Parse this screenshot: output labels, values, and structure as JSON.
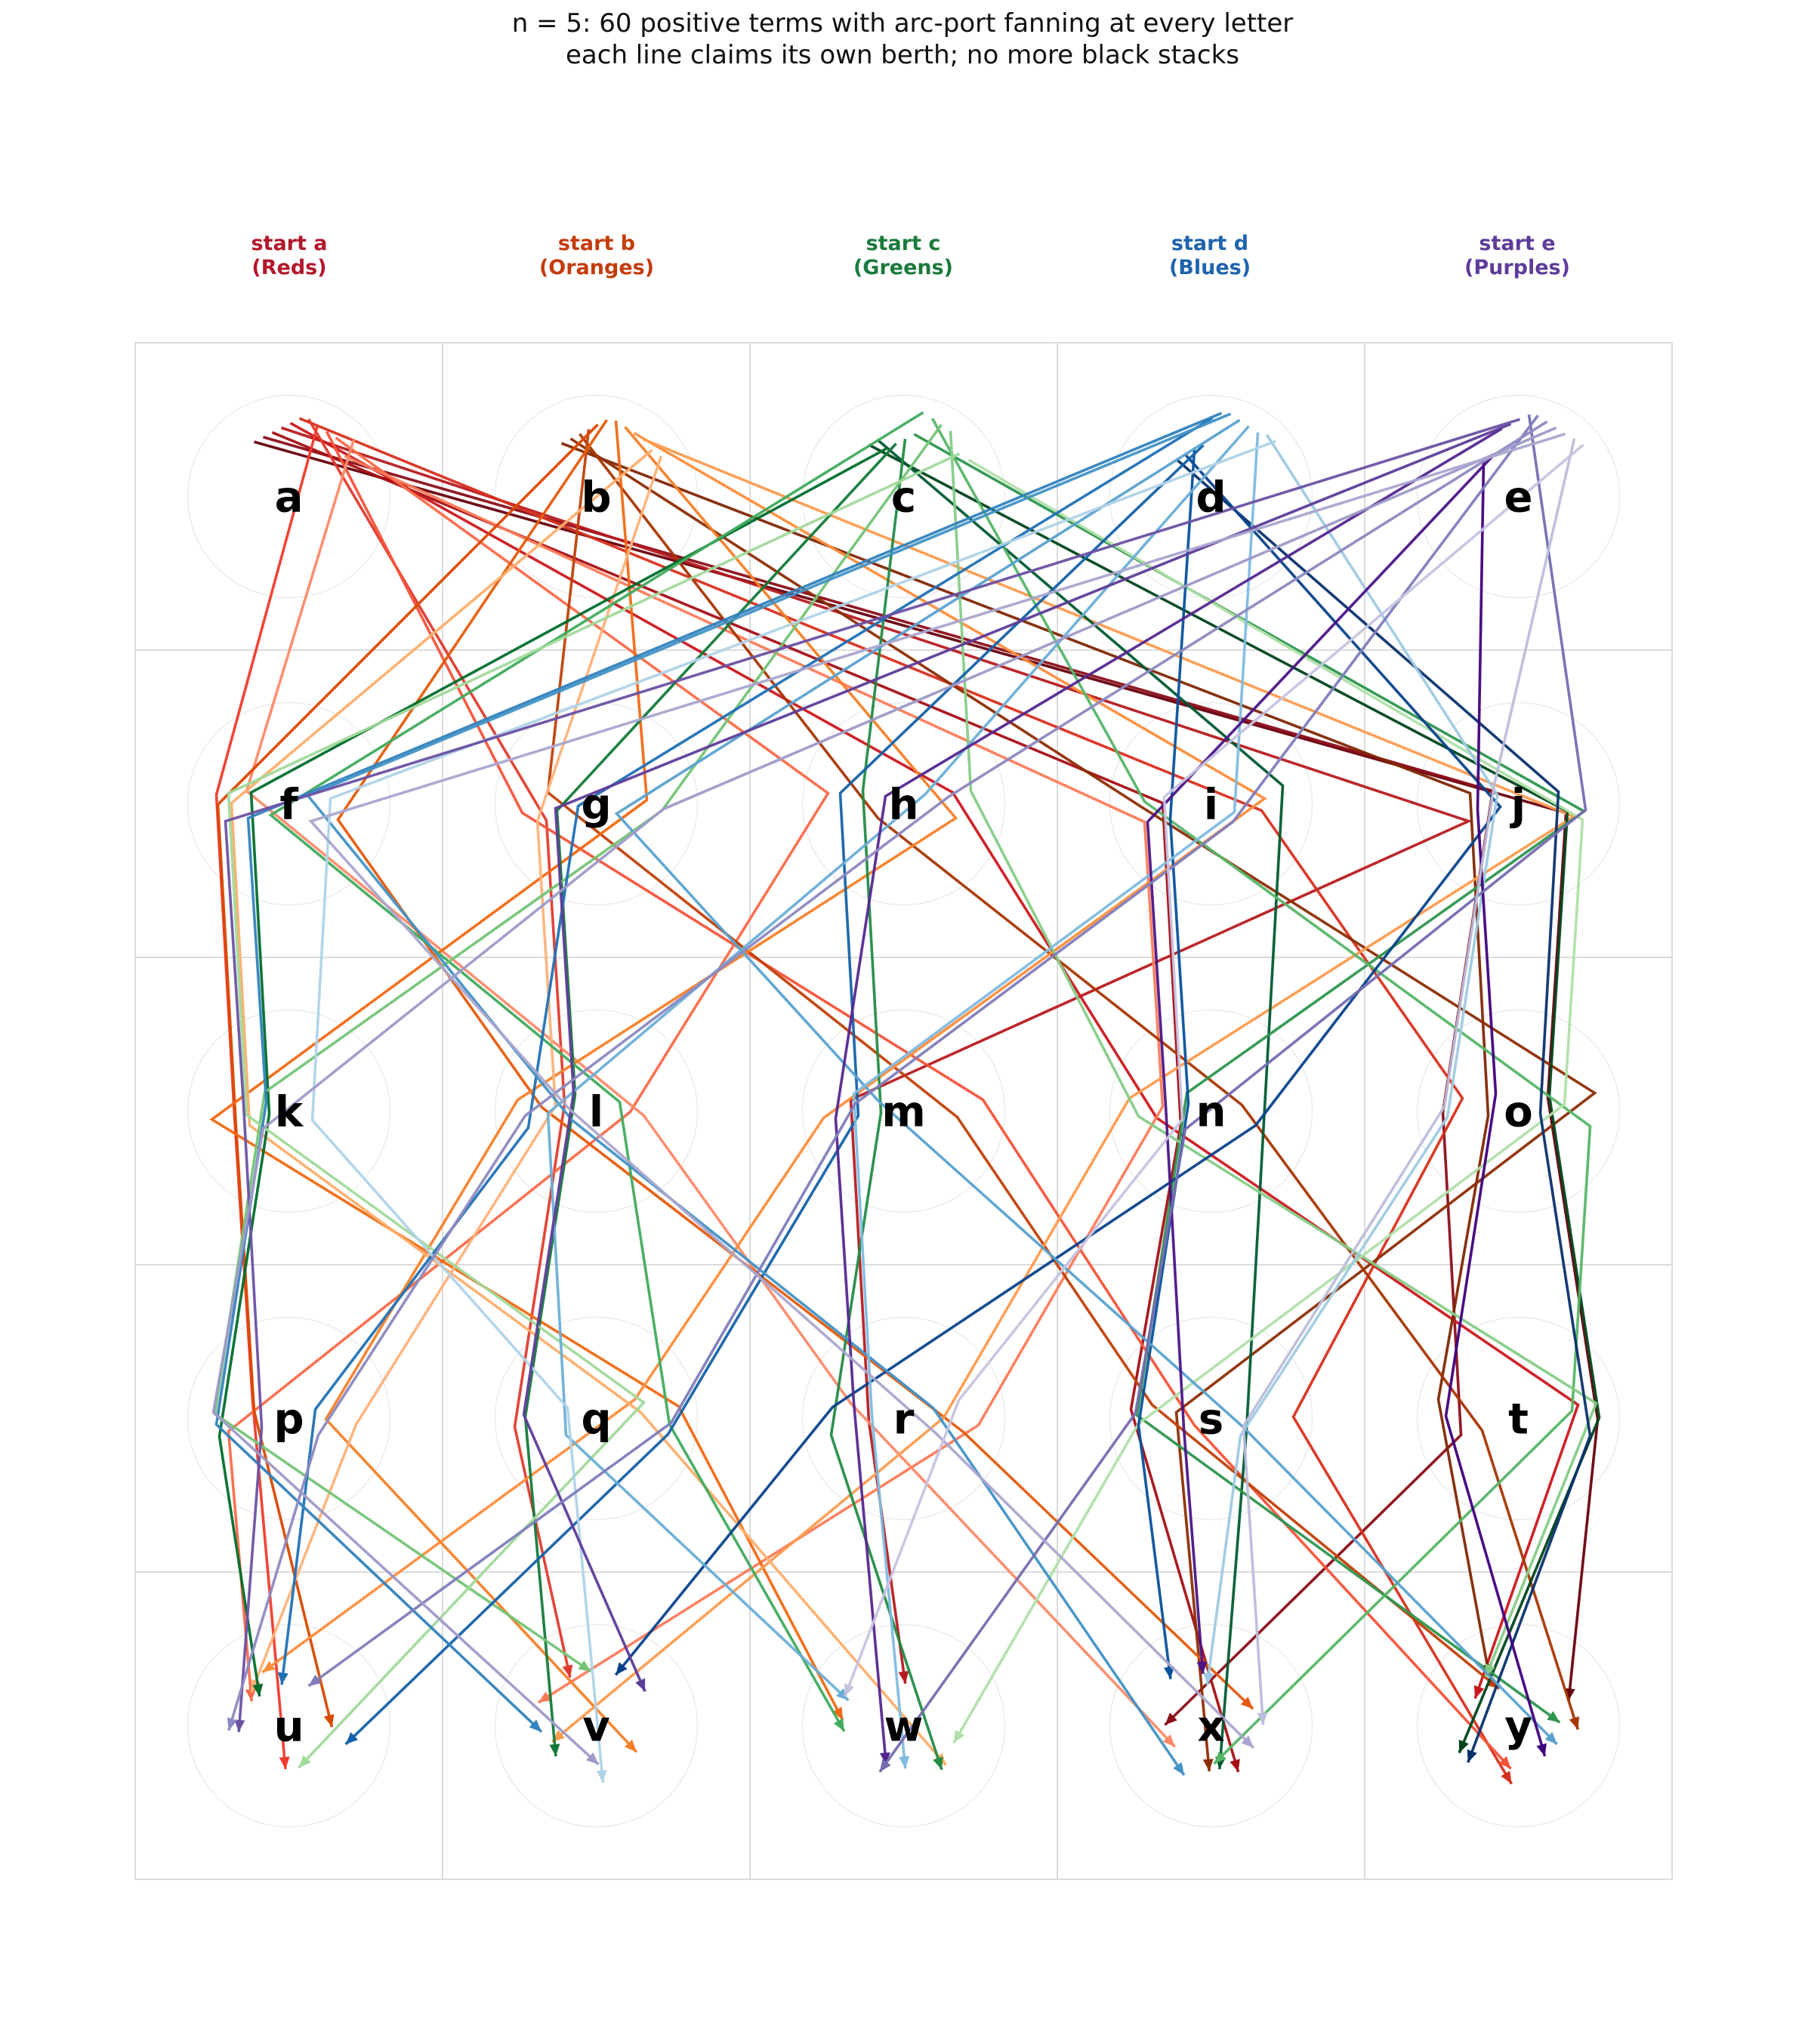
{
  "title": {
    "line1": "n = 5: 60 positive terms with arc-port fanning at every letter",
    "line2": "each line claims its own berth; no more black stacks"
  },
  "letters": [
    "a",
    "b",
    "c",
    "d",
    "e",
    "f",
    "g",
    "h",
    "i",
    "j",
    "k",
    "l",
    "m",
    "n",
    "o",
    "p",
    "q",
    "r",
    "s",
    "t",
    "u",
    "v",
    "w",
    "x",
    "y"
  ],
  "start_labels": [
    {
      "line1": "start a",
      "line2": "(Reds)",
      "color": "#b2182b"
    },
    {
      "line1": "start b",
      "line2": "(Oranges)",
      "color": "#c43c0c"
    },
    {
      "line1": "start c",
      "line2": "(Greens)",
      "color": "#1b7a3c"
    },
    {
      "line1": "start d",
      "line2": "(Blues)",
      "color": "#1f64ad"
    },
    {
      "line1": "start e",
      "line2": "(Purples)",
      "color": "#5e3c99"
    }
  ],
  "palettes": {
    "a": [
      "#67000d",
      "#8b0d18",
      "#a50f15",
      "#b71b20",
      "#cb181d",
      "#d7301f",
      "#e03b2e",
      "#ef3b2c",
      "#f5533a",
      "#fb6a4a",
      "#fc7b5a",
      "#fc8a6a"
    ],
    "b": [
      "#7f2704",
      "#8c2d04",
      "#a63603",
      "#c0400a",
      "#d94801",
      "#e55b0c",
      "#f16913",
      "#f67f27",
      "#fd8d3c",
      "#fd9b4f",
      "#fdae6b",
      "#fdb27a"
    ],
    "c": [
      "#00441b",
      "#005a32",
      "#006d2c",
      "#137a3a",
      "#238b45",
      "#2e9650",
      "#41ab5d",
      "#56b567",
      "#74c476",
      "#85cc86",
      "#a1d99b",
      "#b0dfa9"
    ],
    "d": [
      "#08306b",
      "#08428a",
      "#08519c",
      "#1561a8",
      "#2171b5",
      "#3182bd",
      "#4292c6",
      "#5aa2cf",
      "#6baed6",
      "#7fbadf",
      "#9ecae1",
      "#b0d3e8"
    ],
    "e": [
      "#3f007d",
      "#4a1486",
      "#54278f",
      "#5e3c99",
      "#6a51a3",
      "#756bb1",
      "#807dba",
      "#8c89c0",
      "#9e9ac8",
      "#aaa6cf",
      "#bcbddc",
      "#c6c3e0"
    ]
  },
  "paths": {
    "a": [
      [
        "a",
        "j",
        "o",
        "t",
        "y"
      ],
      [
        "a",
        "j",
        "o",
        "t",
        "x"
      ],
      [
        "a",
        "i",
        "n",
        "s",
        "x"
      ],
      [
        "a",
        "j",
        "m",
        "r",
        "w"
      ],
      [
        "a",
        "h",
        "n",
        "t",
        "y"
      ],
      [
        "a",
        "i",
        "o",
        "s",
        "y"
      ],
      [
        "a",
        "g",
        "l",
        "q",
        "v"
      ],
      [
        "a",
        "f",
        "k",
        "p",
        "u"
      ],
      [
        "a",
        "g",
        "m",
        "s",
        "y"
      ],
      [
        "a",
        "h",
        "l",
        "p",
        "u"
      ],
      [
        "a",
        "i",
        "n",
        "r",
        "v"
      ],
      [
        "a",
        "f",
        "l",
        "r",
        "x"
      ]
    ],
    "b": [
      [
        "b",
        "j",
        "o",
        "t",
        "y"
      ],
      [
        "b",
        "i",
        "o",
        "s",
        "x"
      ],
      [
        "b",
        "h",
        "n",
        "t",
        "y"
      ],
      [
        "b",
        "g",
        "m",
        "s",
        "y"
      ],
      [
        "b",
        "f",
        "k",
        "p",
        "u"
      ],
      [
        "b",
        "f",
        "l",
        "r",
        "x"
      ],
      [
        "b",
        "g",
        "k",
        "q",
        "w"
      ],
      [
        "b",
        "h",
        "l",
        "p",
        "v"
      ],
      [
        "b",
        "i",
        "m",
        "q",
        "u"
      ],
      [
        "b",
        "j",
        "n",
        "r",
        "v"
      ],
      [
        "b",
        "f",
        "k",
        "q",
        "w"
      ],
      [
        "b",
        "g",
        "l",
        "p",
        "u"
      ]
    ],
    "c": [
      [
        "c",
        "j",
        "o",
        "t",
        "y"
      ],
      [
        "c",
        "i",
        "n",
        "s",
        "x"
      ],
      [
        "c",
        "f",
        "k",
        "p",
        "u"
      ],
      [
        "c",
        "g",
        "l",
        "q",
        "v"
      ],
      [
        "c",
        "h",
        "m",
        "r",
        "w"
      ],
      [
        "c",
        "j",
        "n",
        "s",
        "y"
      ],
      [
        "c",
        "f",
        "l",
        "q",
        "w"
      ],
      [
        "c",
        "i",
        "o",
        "t",
        "x"
      ],
      [
        "c",
        "g",
        "k",
        "p",
        "v"
      ],
      [
        "c",
        "h",
        "n",
        "t",
        "y"
      ],
      [
        "c",
        "f",
        "k",
        "q",
        "u"
      ],
      [
        "c",
        "j",
        "o",
        "s",
        "w"
      ]
    ],
    "d": [
      [
        "d",
        "j",
        "o",
        "t",
        "y"
      ],
      [
        "d",
        "j",
        "n",
        "r",
        "v"
      ],
      [
        "d",
        "i",
        "n",
        "s",
        "x"
      ],
      [
        "d",
        "h",
        "m",
        "q",
        "u"
      ],
      [
        "d",
        "g",
        "l",
        "p",
        "u"
      ],
      [
        "d",
        "f",
        "k",
        "p",
        "v"
      ],
      [
        "d",
        "f",
        "l",
        "r",
        "x"
      ],
      [
        "d",
        "g",
        "m",
        "s",
        "y"
      ],
      [
        "d",
        "h",
        "l",
        "q",
        "w"
      ],
      [
        "d",
        "i",
        "m",
        "r",
        "w"
      ],
      [
        "d",
        "j",
        "o",
        "s",
        "x"
      ],
      [
        "d",
        "f",
        "k",
        "q",
        "v"
      ]
    ],
    "e": [
      [
        "e",
        "j",
        "o",
        "t",
        "y"
      ],
      [
        "e",
        "i",
        "n",
        "s",
        "x"
      ],
      [
        "e",
        "h",
        "m",
        "r",
        "w"
      ],
      [
        "e",
        "g",
        "l",
        "q",
        "v"
      ],
      [
        "e",
        "f",
        "k",
        "p",
        "u"
      ],
      [
        "e",
        "j",
        "n",
        "s",
        "w"
      ],
      [
        "e",
        "i",
        "m",
        "q",
        "u"
      ],
      [
        "e",
        "h",
        "l",
        "p",
        "u"
      ],
      [
        "e",
        "g",
        "k",
        "p",
        "v"
      ],
      [
        "e",
        "f",
        "l",
        "r",
        "x"
      ],
      [
        "e",
        "j",
        "o",
        "s",
        "x"
      ],
      [
        "e",
        "i",
        "n",
        "r",
        "w"
      ]
    ]
  }
}
